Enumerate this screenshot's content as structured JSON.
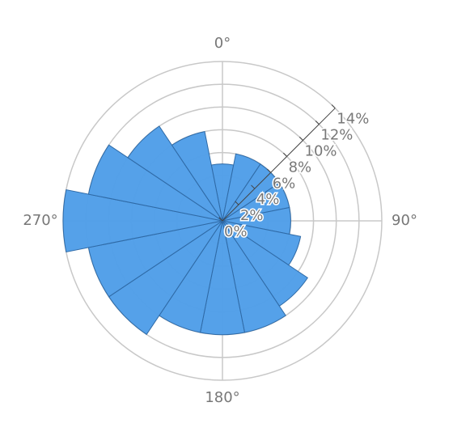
{
  "chart_data": {
    "type": "barpolar",
    "theta": [
      0,
      22.5,
      45,
      67.5,
      90,
      112.5,
      135,
      157.5,
      180,
      202.5,
      225,
      247.5,
      270,
      292.5,
      315,
      337.5
    ],
    "values": [
      5,
      6,
      6,
      6,
      6,
      7,
      9,
      10,
      10,
      10,
      12,
      12,
      14,
      12,
      10,
      8
    ],
    "color": "#4f9ee8",
    "rlim": [
      0,
      14
    ],
    "rticks": [
      {
        "value": 0,
        "label": "0%"
      },
      {
        "value": 2,
        "label": "2%"
      },
      {
        "value": 4,
        "label": "4%"
      },
      {
        "value": 6,
        "label": "6%"
      },
      {
        "value": 8,
        "label": "8%"
      },
      {
        "value": 10,
        "label": "10%"
      },
      {
        "value": 12,
        "label": "12%"
      },
      {
        "value": 14,
        "label": "14%"
      }
    ],
    "thetaticks": [
      {
        "value": 0,
        "label": "0°"
      },
      {
        "value": 90,
        "label": "90°"
      },
      {
        "value": 180,
        "label": "180°"
      },
      {
        "value": 270,
        "label": "270°"
      }
    ],
    "grid": true
  }
}
